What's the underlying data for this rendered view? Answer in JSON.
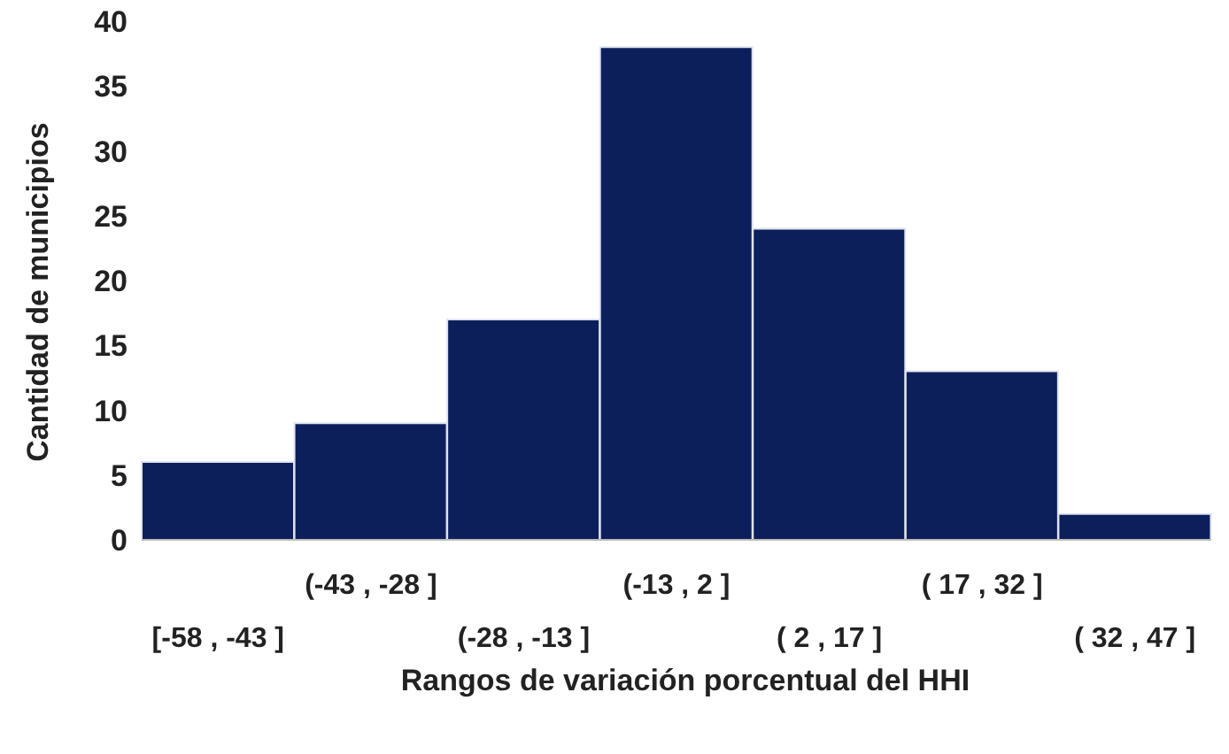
{
  "chart_data": {
    "type": "bar",
    "xlabel": "Rangos de variación porcentual del HHI",
    "ylabel": "Cantidad de municipios",
    "categories": [
      "[-58 , -43 ]",
      "(-43 , -28 ]",
      "(-28 , -13 ]",
      "(-13 , 2 ]",
      "( 2 , 17 ]",
      "( 17 , 32 ]",
      "( 32 , 47 ]"
    ],
    "values": [
      6,
      9,
      17,
      38,
      24,
      13,
      2
    ],
    "color": "#0c1f5b",
    "ylim": [
      0,
      40
    ],
    "yticks": [
      0,
      5,
      10,
      15,
      20,
      25,
      30,
      35,
      40
    ],
    "grid": false,
    "legend": false
  }
}
